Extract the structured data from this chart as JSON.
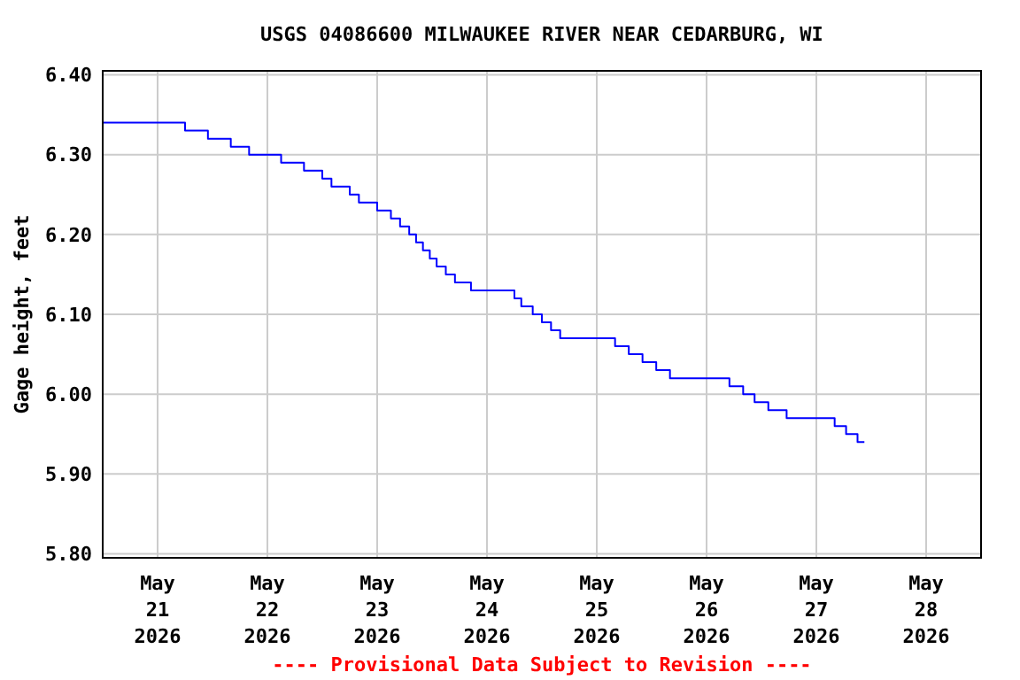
{
  "chart_data": {
    "type": "step",
    "title": "USGS 04086600 MILWAUKEE RIVER NEAR CEDARBURG, WI",
    "ylabel": "Gage height, feet",
    "annotations": [
      "---- Provisional Data Subject to Revision ----"
    ],
    "x": [
      "2026-05-20T12:00",
      "2026-05-21T06:00",
      "2026-05-21T11:00",
      "2026-05-21T16:00",
      "2026-05-21T20:00",
      "2026-05-22T03:00",
      "2026-05-22T08:00",
      "2026-05-22T12:00",
      "2026-05-22T14:00",
      "2026-05-22T18:00",
      "2026-05-22T20:00",
      "2026-05-23T00:00",
      "2026-05-23T03:00",
      "2026-05-23T05:00",
      "2026-05-23T07:00",
      "2026-05-23T08:30",
      "2026-05-23T10:00",
      "2026-05-23T11:30",
      "2026-05-23T13:00",
      "2026-05-23T15:00",
      "2026-05-23T17:00",
      "2026-05-23T20:30",
      "2026-05-24T06:00",
      "2026-05-24T07:30",
      "2026-05-24T10:00",
      "2026-05-24T12:00",
      "2026-05-24T14:00",
      "2026-05-24T16:00",
      "2026-05-25T04:00",
      "2026-05-25T07:00",
      "2026-05-25T10:00",
      "2026-05-25T13:00",
      "2026-05-25T16:00",
      "2026-05-26T05:00",
      "2026-05-26T08:00",
      "2026-05-26T10:30",
      "2026-05-26T13:30",
      "2026-05-26T17:30",
      "2026-05-27T04:00",
      "2026-05-27T06:30",
      "2026-05-27T09:00",
      "2026-05-27T10:30"
    ],
    "series": [
      {
        "color": "#0000ff",
        "values": [
          6.34,
          6.33,
          6.32,
          6.31,
          6.3,
          6.29,
          6.28,
          6.27,
          6.26,
          6.25,
          6.24,
          6.23,
          6.22,
          6.21,
          6.2,
          6.19,
          6.18,
          6.17,
          6.16,
          6.15,
          6.14,
          6.13,
          6.12,
          6.11,
          6.1,
          6.09,
          6.08,
          6.07,
          6.06,
          6.05,
          6.04,
          6.03,
          6.02,
          6.01,
          6.0,
          5.99,
          5.98,
          5.97,
          5.96,
          5.95,
          5.94,
          5.94
        ]
      }
    ],
    "xlim": [
      "2026-05-20T12:00",
      "2026-05-28T12:00"
    ],
    "xticks": [
      {
        "value": "2026-05-21",
        "label": "May 21 2026"
      },
      {
        "value": "2026-05-22",
        "label": "May 22 2026"
      },
      {
        "value": "2026-05-23",
        "label": "May 23 2026"
      },
      {
        "value": "2026-05-24",
        "label": "May 24 2026"
      },
      {
        "value": "2026-05-25",
        "label": "May 25 2026"
      },
      {
        "value": "2026-05-26",
        "label": "May 26 2026"
      },
      {
        "value": "2026-05-27",
        "label": "May 27 2026"
      },
      {
        "value": "2026-05-28",
        "label": "May 28 2026"
      }
    ],
    "ylim": [
      5.795,
      6.405
    ],
    "yticks": [
      {
        "value": 5.8,
        "label": "5.80"
      },
      {
        "value": 5.9,
        "label": "5.90"
      },
      {
        "value": 6.0,
        "label": "6.00"
      },
      {
        "value": 6.1,
        "label": "6.10"
      },
      {
        "value": 6.2,
        "label": "6.20"
      },
      {
        "value": 6.3,
        "label": "6.30"
      },
      {
        "value": 6.4,
        "label": "6.40"
      }
    ],
    "grid": true,
    "marker": "none",
    "line_style": "solid"
  }
}
